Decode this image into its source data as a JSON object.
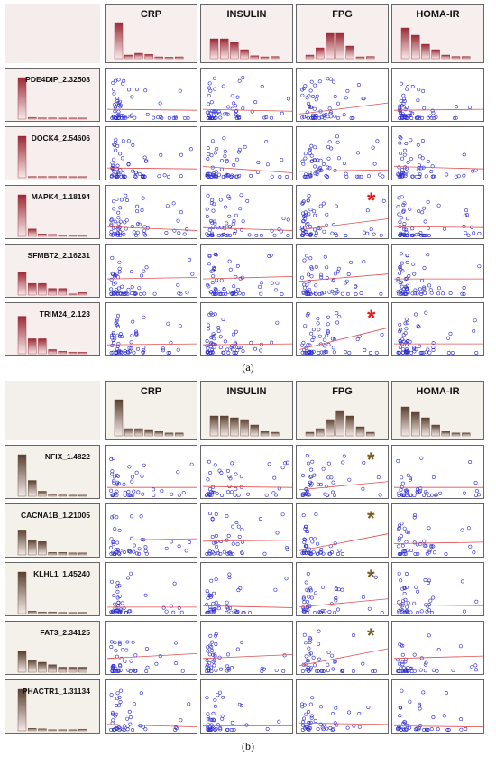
{
  "figure": {
    "panels": [
      {
        "caption": "(a)",
        "theme": "red",
        "columns": [
          "CRP",
          "INSULIN",
          "FPG",
          "HOMA-IR"
        ],
        "rows": [
          "PDE4DIP_2.32508",
          "DOCK4_2.54606",
          "MAPK4_1.18194",
          "SFMBT2_2.16231",
          "TRIM24_2.123"
        ],
        "significant": [
          {
            "row": 2,
            "col": 2
          },
          {
            "row": 4,
            "col": 2
          }
        ]
      },
      {
        "caption": "(b)",
        "theme": "brown",
        "columns": [
          "CRP",
          "INSULIN",
          "FPG",
          "HOMA-IR"
        ],
        "rows": [
          "NFIX_1.4822",
          "CACNA1B_1.21005",
          "KLHL1_1.45240",
          "FAT3_2.34125",
          "PHACTR1_1.31134"
        ],
        "significant": [
          {
            "row": 0,
            "col": 2
          },
          {
            "row": 1,
            "col": 2
          },
          {
            "row": 2,
            "col": 2
          },
          {
            "row": 3,
            "col": 2
          }
        ]
      }
    ],
    "star_symbol": "*",
    "colors": {
      "red_theme": "#9a2a36",
      "brown_theme": "#5a4030",
      "points": "#2f2fd0",
      "fit_line": "#e05050",
      "star_red": "#e51a1a",
      "star_brown": "#7a5a20"
    }
  },
  "chart_data": [
    {
      "type": "scatter",
      "panel": "(a)",
      "columns": [
        "CRP",
        "INSULIN",
        "FPG",
        "HOMA-IR"
      ],
      "rows": [
        "PDE4DIP_2.32508",
        "DOCK4_2.54606",
        "MAPK4_1.18194",
        "SFMBT2_2.16231",
        "TRIM24_2.123"
      ],
      "column_histograms": [
        [
          1.0,
          0.1,
          0.15,
          0.12,
          0.05,
          0.04,
          0.05
        ],
        [
          0.55,
          0.55,
          0.45,
          0.25,
          0.08,
          0.05,
          0.06
        ],
        [
          0.1,
          0.3,
          0.7,
          0.7,
          0.35,
          0.05,
          0.06
        ],
        [
          0.85,
          0.65,
          0.4,
          0.25,
          0.1,
          0.06,
          0.06
        ]
      ],
      "row_histograms": [
        [
          1.0,
          0.04,
          0.03,
          0.03,
          0.0,
          0.0,
          0.02
        ],
        [
          1.0,
          0.03,
          0.03,
          0.03,
          0.03,
          0.02,
          0.02
        ],
        [
          1.0,
          0.18,
          0.06,
          0.05,
          0.0,
          0.0,
          0.02
        ],
        [
          0.55,
          0.28,
          0.28,
          0.16,
          0.16,
          0.0,
          0.06
        ],
        [
          0.9,
          0.36,
          0.36,
          0.1,
          0.06,
          0.04,
          0.04
        ]
      ],
      "fit_lines": [
        [
          [
            0,
            0.22
          ],
          [
            1,
            0.2
          ]
        ],
        [
          [
            0,
            0.22
          ],
          [
            1,
            0.18
          ]
        ],
        [
          [
            0,
            0.12
          ],
          [
            1,
            0.35
          ]
        ],
        [
          [
            0,
            0.2
          ],
          [
            1,
            0.22
          ]
        ],
        [
          [
            0,
            0.22
          ],
          [
            1,
            0.2
          ]
        ],
        [
          [
            0,
            0.25
          ],
          [
            1,
            0.12
          ]
        ],
        [
          [
            0,
            0.15
          ],
          [
            1,
            0.18
          ]
        ],
        [
          [
            0,
            0.25
          ],
          [
            1,
            0.2
          ]
        ],
        [
          [
            0,
            0.22
          ],
          [
            1,
            0.14
          ]
        ],
        [
          [
            0,
            0.2
          ],
          [
            1,
            0.14
          ]
        ],
        [
          [
            0,
            0.15
          ],
          [
            1,
            0.38
          ]
        ],
        [
          [
            0,
            0.22
          ],
          [
            1,
            0.2
          ]
        ],
        [
          [
            0,
            0.35
          ],
          [
            1,
            0.38
          ]
        ],
        [
          [
            0,
            0.35
          ],
          [
            1,
            0.4
          ]
        ],
        [
          [
            0,
            0.3
          ],
          [
            1,
            0.45
          ]
        ],
        [
          [
            0,
            0.35
          ],
          [
            1,
            0.35
          ]
        ],
        [
          [
            0,
            0.2
          ],
          [
            1,
            0.22
          ]
        ],
        [
          [
            0,
            0.2
          ],
          [
            1,
            0.22
          ]
        ],
        [
          [
            0,
            0.1
          ],
          [
            1,
            0.55
          ]
        ],
        [
          [
            0,
            0.22
          ],
          [
            1,
            0.22
          ]
        ]
      ]
    },
    {
      "type": "scatter",
      "panel": "(b)",
      "columns": [
        "CRP",
        "INSULIN",
        "FPG",
        "HOMA-IR"
      ],
      "rows": [
        "NFIX_1.4822",
        "CACNA1B_1.21005",
        "KLHL1_1.45240",
        "FAT3_2.34125",
        "PHACTR1_1.31134"
      ],
      "column_histograms": [
        [
          1.0,
          0.2,
          0.2,
          0.15,
          0.12,
          0.08,
          0.08
        ],
        [
          0.55,
          0.55,
          0.5,
          0.45,
          0.3,
          0.12,
          0.1
        ],
        [
          0.1,
          0.2,
          0.45,
          0.7,
          0.55,
          0.25,
          0.1
        ],
        [
          0.8,
          0.65,
          0.5,
          0.3,
          0.12,
          0.08,
          0.08
        ]
      ],
      "row_histograms": [
        [
          1.0,
          0.38,
          0.12,
          0.05,
          0.03,
          0.0,
          0.02
        ],
        [
          0.6,
          0.36,
          0.32,
          0.06,
          0.06,
          0.05,
          0.05
        ],
        [
          1.0,
          0.06,
          0.04,
          0.04,
          0.03,
          0.0,
          0.03
        ],
        [
          0.5,
          0.3,
          0.24,
          0.18,
          0.12,
          0.12,
          0.12
        ],
        [
          1.0,
          0.06,
          0.05,
          0.0,
          0.0,
          0.0,
          0.04
        ]
      ],
      "fit_lines": [
        [
          [
            0,
            0.2
          ],
          [
            1,
            0.2
          ]
        ],
        [
          [
            0,
            0.22
          ],
          [
            1,
            0.2
          ]
        ],
        [
          [
            0,
            0.15
          ],
          [
            1,
            0.32
          ]
        ],
        [
          [
            0,
            0.2
          ],
          [
            1,
            0.2
          ]
        ],
        [
          [
            0,
            0.32
          ],
          [
            1,
            0.35
          ]
        ],
        [
          [
            0,
            0.3
          ],
          [
            1,
            0.32
          ]
        ],
        [
          [
            0,
            0.1
          ],
          [
            1,
            0.45
          ]
        ],
        [
          [
            0,
            0.25
          ],
          [
            1,
            0.28
          ]
        ],
        [
          [
            0,
            0.15
          ],
          [
            1,
            0.15
          ]
        ],
        [
          [
            0,
            0.18
          ],
          [
            1,
            0.14
          ]
        ],
        [
          [
            0,
            0.15
          ],
          [
            1,
            0.32
          ]
        ],
        [
          [
            0,
            0.2
          ],
          [
            1,
            0.18
          ]
        ],
        [
          [
            0,
            0.3
          ],
          [
            1,
            0.4
          ]
        ],
        [
          [
            0,
            0.3
          ],
          [
            1,
            0.38
          ]
        ],
        [
          [
            0,
            0.15
          ],
          [
            1,
            0.5
          ]
        ],
        [
          [
            0,
            0.3
          ],
          [
            1,
            0.35
          ]
        ],
        [
          [
            0,
            0.15
          ],
          [
            1,
            0.1
          ]
        ],
        [
          [
            0,
            0.12
          ],
          [
            1,
            0.12
          ]
        ],
        [
          [
            0,
            0.18
          ],
          [
            1,
            0.15
          ]
        ],
        [
          [
            0,
            0.12
          ],
          [
            1,
            0.1
          ]
        ]
      ],
      "scatter_note": "Scatter points are dense near the bottom of each cell with sparse high values; approximate distributions."
    }
  ]
}
